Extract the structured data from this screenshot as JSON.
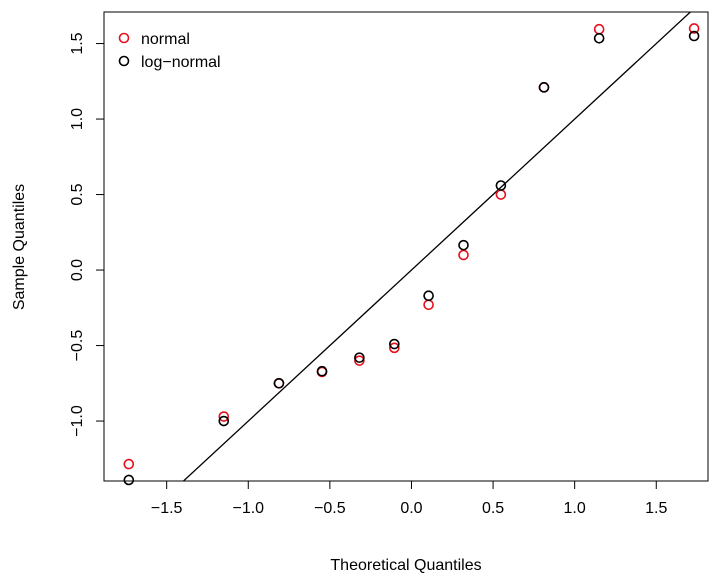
{
  "chart_data": {
    "type": "scatter",
    "x_label": "Theoretical Quantiles",
    "y_label": "Sample Quantiles",
    "x": [
      -1.732,
      -1.15,
      -0.812,
      -0.548,
      -0.319,
      -0.105,
      0.105,
      0.319,
      0.548,
      0.812,
      1.15,
      1.732
    ],
    "series": [
      {
        "name": "normal",
        "color": "#e8101c",
        "values": [
          -1.285,
          -0.97,
          -0.75,
          -0.675,
          -0.6,
          -0.515,
          -0.23,
          0.1,
          0.5,
          1.21,
          1.595,
          1.6
        ]
      },
      {
        "name": "log−normal",
        "color": "#000000",
        "values": [
          -1.39,
          -1.0,
          -0.75,
          -0.67,
          -0.58,
          -0.49,
          -0.17,
          0.165,
          0.56,
          1.21,
          1.535,
          1.55
        ]
      }
    ],
    "abline": {
      "intercept": 0,
      "slope": 1
    },
    "xlim": [
      -1.884,
      1.817
    ],
    "ylim": [
      -1.397,
      1.709
    ],
    "xticks": [
      {
        "value": -1.5,
        "label": "−1.5"
      },
      {
        "value": -1.0,
        "label": "−1.0"
      },
      {
        "value": -0.5,
        "label": "−0.5"
      },
      {
        "value": 0,
        "label": "0.0"
      },
      {
        "value": 0.5,
        "label": "0.5"
      },
      {
        "value": 1.0,
        "label": "1.0"
      },
      {
        "value": 1.5,
        "label": "1.5"
      }
    ],
    "yticks": [
      {
        "value": -1.0,
        "label": "−1.0"
      },
      {
        "value": -0.5,
        "label": "−0.5"
      },
      {
        "value": 0,
        "label": "0.0"
      },
      {
        "value": 0.5,
        "label": "0.5"
      },
      {
        "value": 1.0,
        "label": "1.0"
      },
      {
        "value": 1.5,
        "label": "1.5"
      }
    ],
    "legend": "top-left",
    "grid": false
  }
}
